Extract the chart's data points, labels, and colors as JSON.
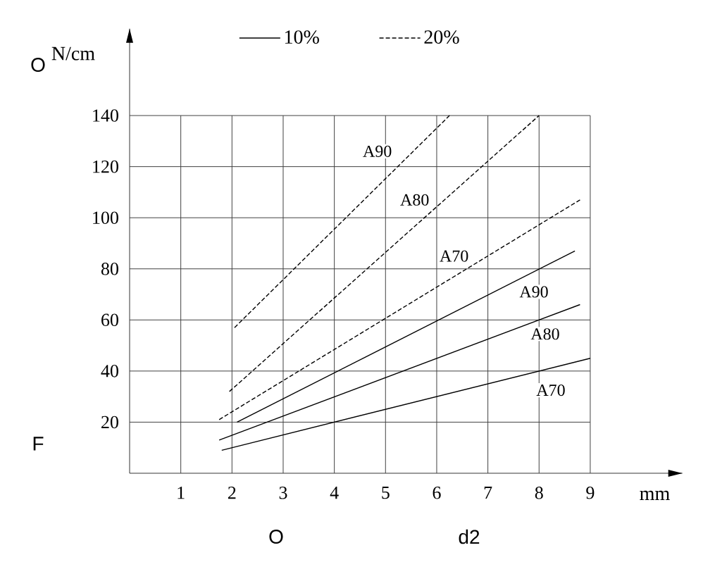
{
  "chart_data": {
    "type": "line",
    "xlabel": "mm",
    "ylabel": "N/cm",
    "xlim": [
      0,
      10.8
    ],
    "ylim": [
      0,
      174
    ],
    "xticks": [
      1,
      2,
      3,
      4,
      5,
      6,
      7,
      8,
      9
    ],
    "yticks": [
      20,
      40,
      60,
      80,
      100,
      120,
      140
    ],
    "grid": true,
    "legend": "top",
    "series": [
      {
        "name": "10%",
        "color": "#000000",
        "line_style": "solid",
        "x": [
          1.8,
          9
        ],
        "values": [
          9,
          45
        ]
      },
      {
        "color": "#000000",
        "line_style": "solid",
        "x": [
          1.75,
          8.8
        ],
        "values": [
          13,
          66
        ]
      },
      {
        "color": "#000000",
        "line_style": "solid",
        "x": [
          2.1,
          8.7
        ],
        "values": [
          20,
          87
        ]
      },
      {
        "name": "20%",
        "color": "#000000",
        "line_style": "dashed",
        "x": [
          1.75,
          8.8
        ],
        "values": [
          21,
          107
        ]
      },
      {
        "color": "#000000",
        "line_style": "dashed",
        "x": [
          1.95,
          8
        ],
        "values": [
          32,
          140
        ]
      },
      {
        "color": "#000000",
        "line_style": "dashed",
        "x": [
          2.05,
          6.25
        ],
        "values": [
          57,
          140
        ]
      }
    ],
    "annotations": [
      {
        "text": "A90",
        "x": 4.84,
        "y": 126
      },
      {
        "text": "A80",
        "x": 5.57,
        "y": 107
      },
      {
        "text": "A70",
        "x": 6.34,
        "y": 85
      },
      {
        "text": "A90",
        "x": 7.9,
        "y": 71
      },
      {
        "text": "A80",
        "x": 8.12,
        "y": 54.5
      },
      {
        "text": "A70",
        "x": 8.23,
        "y": 32.5
      },
      "O",
      "F",
      "O",
      "d2"
    ]
  }
}
